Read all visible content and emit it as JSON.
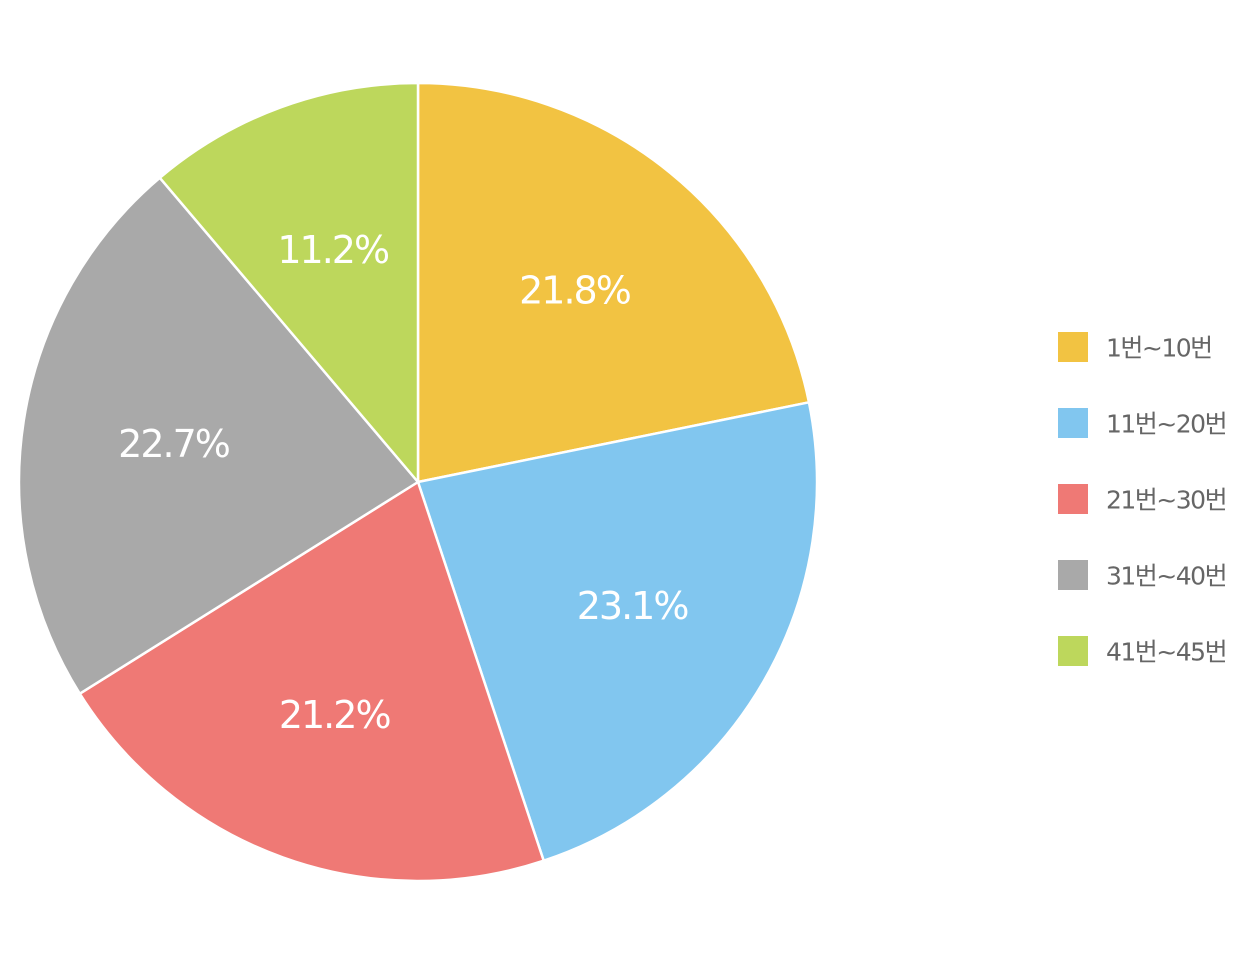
{
  "chart_data": {
    "type": "pie",
    "start_angle": "12 o'clock",
    "direction": "clockwise",
    "legend_position": "right",
    "slices": [
      {
        "label": "1번~10번",
        "value": 21.8,
        "value_label": "21.8%",
        "color": "#F2C342"
      },
      {
        "label": "11번~20번",
        "value": 23.1,
        "value_label": "23.1%",
        "color": "#81C6EF"
      },
      {
        "label": "21번~30번",
        "value": 21.2,
        "value_label": "21.2%",
        "color": "#EF7975"
      },
      {
        "label": "31번~40번",
        "value": 22.7,
        "value_label": "22.7%",
        "color": "#A9A9A9"
      },
      {
        "label": "41번~45번",
        "value": 11.2,
        "value_label": "11.2%",
        "color": "#BDD75C"
      }
    ]
  }
}
